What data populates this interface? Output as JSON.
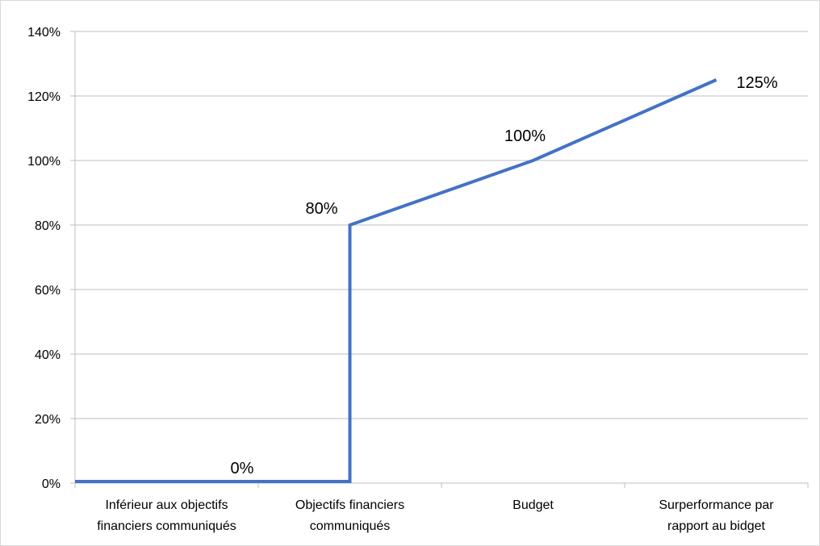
{
  "chart_data": {
    "type": "line",
    "title": "",
    "xlabel": "",
    "ylabel": "",
    "ylim": [
      0,
      140
    ],
    "yticks": [
      "0%",
      "20%",
      "40%",
      "60%",
      "80%",
      "100%",
      "120%",
      "140%"
    ],
    "categories": [
      [
        "Inférieur aux objectifs",
        "financiers communiqués"
      ],
      [
        "Objectifs financiers",
        "communiqués"
      ],
      [
        "Budget"
      ],
      [
        "Surperformance par",
        "rapport au bidget"
      ]
    ],
    "series": [
      {
        "points": [
          {
            "x": 0,
            "y": 0
          },
          {
            "x": 1.5,
            "y": 0
          },
          {
            "x": 1.5,
            "y": 80
          },
          {
            "x": 2.5,
            "y": 100
          },
          {
            "x": 3.5,
            "y": 125
          }
        ],
        "color": "#4472C4"
      }
    ],
    "data_labels": [
      {
        "x": 1.0,
        "y": 0,
        "text": "0%"
      },
      {
        "x": 1.5,
        "y": 80,
        "text": "80%"
      },
      {
        "x": 2.5,
        "y": 100,
        "text": "100%"
      },
      {
        "x": 3.5,
        "y": 125,
        "text": "125%"
      }
    ],
    "grid": true,
    "legend": "none"
  }
}
